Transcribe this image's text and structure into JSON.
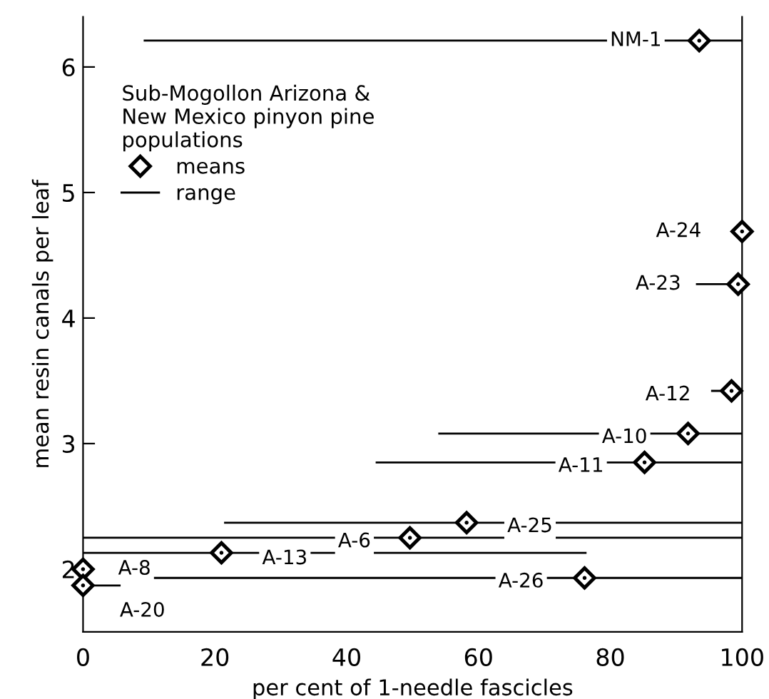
{
  "chart_data": {
    "type": "scatter",
    "xlabel": "per cent of 1-needle fascicles",
    "ylabel": "mean resin canals per leaf",
    "legend_title": "Sub-Mogollon Arizona &\nNew Mexico pinyon pine\npopulations",
    "x": [
      93.5,
      100,
      99.4,
      98.4,
      91.8,
      85.2,
      58.2,
      49.6,
      21.0,
      0,
      0,
      76.1
    ],
    "series": [
      {
        "name": "means",
        "color": "#000000",
        "values": [
          6.21,
          4.69,
          4.27,
          3.42,
          3.08,
          2.85,
          2.37,
          2.25,
          2.13,
          2.0,
          1.87,
          1.93
        ],
        "xerrors": [
          [
            9.2,
            100
          ],
          null,
          [
            93,
            100
          ],
          [
            95.3,
            100
          ],
          [
            53.9,
            100
          ],
          [
            44.4,
            100
          ],
          [
            21.4,
            100
          ],
          [
            0,
            100
          ],
          [
            0,
            76.4
          ],
          null,
          [
            0,
            5.7
          ],
          [
            8.7,
            100
          ]
        ]
      }
    ],
    "annotations": [
      {
        "text": "NM-1",
        "x": 93.5,
        "y": 6.21
      },
      {
        "text": "A-24",
        "x": 100,
        "y": 4.69
      },
      {
        "text": "A-23",
        "x": 93,
        "y": 4.27
      },
      {
        "text": "A-12",
        "x": 98.4,
        "y": 3.42
      },
      {
        "text": "A-10",
        "x": 91.8,
        "y": 3.08
      },
      {
        "text": "A-11",
        "x": 85.2,
        "y": 2.85
      },
      {
        "text": "A-25",
        "x": 58.2,
        "y": 2.37
      },
      {
        "text": "A-6",
        "x": 49.6,
        "y": 2.25
      },
      {
        "text": "A-13",
        "x": 21.0,
        "y": 2.13
      },
      {
        "text": "A-8",
        "x": 0,
        "y": 2.0
      },
      {
        "text": "A-20",
        "x": 0,
        "y": 1.87
      },
      {
        "text": "A-26",
        "x": 76.1,
        "y": 1.93
      },
      "range"
    ],
    "marker": "diamond",
    "legend": "top left",
    "xlim": [
      0,
      100
    ],
    "xticks": [
      0,
      20,
      40,
      60,
      80,
      100
    ],
    "ylim": [
      1.5,
      6.4
    ],
    "yticks": [
      2,
      3,
      4,
      5,
      6
    ],
    "grid": false
  }
}
